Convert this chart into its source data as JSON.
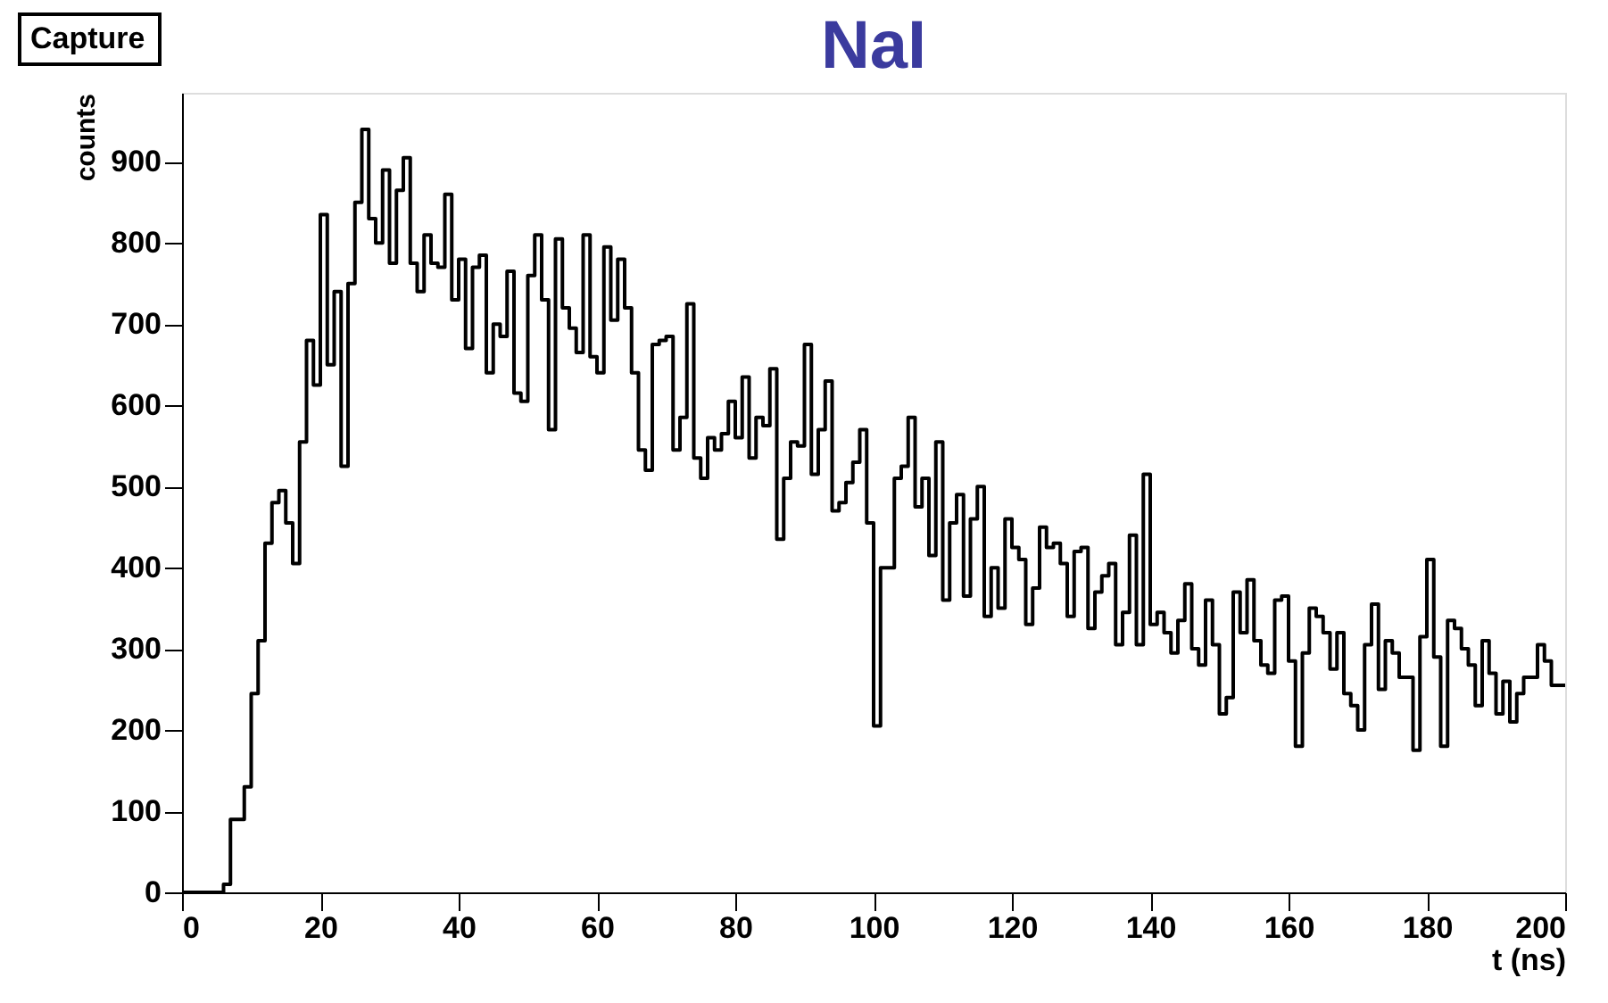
{
  "chart_data": {
    "type": "histogram",
    "title": "NaI",
    "xlabel": "t (ns)",
    "ylabel": "counts",
    "annotations": [
      "Capture"
    ],
    "bins": [
      0,
      1,
      2,
      3,
      4,
      5,
      6,
      7,
      8,
      9,
      10,
      11,
      12,
      13,
      14,
      15,
      16,
      17,
      18,
      19,
      20,
      21,
      22,
      23,
      24,
      25,
      26,
      27,
      28,
      29,
      30,
      31,
      32,
      33,
      34,
      35,
      36,
      37,
      38,
      39,
      40,
      41,
      42,
      43,
      44,
      45,
      46,
      47,
      48,
      49,
      50,
      51,
      52,
      53,
      54,
      55,
      56,
      57,
      58,
      59,
      60,
      61,
      62,
      63,
      64,
      65,
      66,
      67,
      68,
      69,
      70,
      71,
      72,
      73,
      74,
      75,
      76,
      77,
      78,
      79,
      80,
      81,
      82,
      83,
      84,
      85,
      86,
      87,
      88,
      89,
      90,
      91,
      92,
      93,
      94,
      95,
      96,
      97,
      98,
      99,
      100,
      101,
      102,
      103,
      104,
      105,
      106,
      107,
      108,
      109,
      110,
      111,
      112,
      113,
      114,
      115,
      116,
      117,
      118,
      119,
      120,
      121,
      122,
      123,
      124,
      125,
      126,
      127,
      128,
      129,
      130,
      131,
      132,
      133,
      134,
      135,
      136,
      137,
      138,
      139,
      140,
      141,
      142,
      143,
      144,
      145,
      146,
      147,
      148,
      149,
      150,
      151,
      152,
      153,
      154,
      155,
      156,
      157,
      158,
      159,
      160,
      161,
      162,
      163,
      164,
      165,
      166,
      167,
      168,
      169,
      170,
      171,
      172,
      173,
      174,
      175,
      176,
      177,
      178,
      179,
      180,
      181,
      182,
      183,
      184,
      185,
      186,
      187,
      188,
      189,
      190,
      191,
      192,
      193,
      194,
      195,
      196,
      197,
      198,
      199,
      200
    ],
    "values": [
      0,
      0,
      0,
      0,
      0,
      0,
      10,
      90,
      90,
      130,
      245,
      310,
      430,
      480,
      495,
      455,
      405,
      555,
      680,
      625,
      835,
      650,
      740,
      525,
      750,
      850,
      940,
      830,
      800,
      890,
      775,
      865,
      905,
      775,
      740,
      810,
      775,
      770,
      860,
      730,
      780,
      670,
      770,
      785,
      640,
      700,
      685,
      765,
      615,
      605,
      760,
      810,
      730,
      570,
      805,
      720,
      695,
      665,
      810,
      660,
      640,
      795,
      705,
      780,
      720,
      640,
      545,
      520,
      675,
      680,
      685,
      545,
      585,
      725,
      535,
      510,
      560,
      545,
      565,
      605,
      560,
      635,
      535,
      585,
      575,
      645,
      435,
      510,
      555,
      550,
      675,
      515,
      570,
      630,
      470,
      480,
      505,
      530,
      570,
      455,
      205,
      400,
      400,
      510,
      525,
      585,
      475,
      510,
      415,
      555,
      360,
      455,
      490,
      365,
      460,
      500,
      340,
      400,
      350,
      460,
      425,
      410,
      330,
      375,
      450,
      425,
      430,
      405,
      340,
      420,
      425,
      325,
      370,
      390,
      405,
      305,
      345,
      440,
      305,
      515,
      330,
      345,
      320,
      295,
      335,
      380,
      300,
      280,
      360,
      305,
      220,
      240,
      370,
      320,
      385,
      310,
      280,
      270,
      360,
      365,
      285,
      180,
      295,
      350,
      340,
      320,
      275,
      320,
      245,
      230,
      200,
      305,
      355,
      250,
      310,
      295,
      265,
      265,
      175,
      315,
      410,
      290,
      180,
      335,
      325,
      300,
      280,
      230,
      310,
      270,
      220,
      260,
      210,
      245,
      265,
      265,
      305,
      285,
      255,
      255
    ],
    "color": "#000000",
    "xlim": [
      0,
      200
    ],
    "ylim": [
      0,
      985
    ],
    "xticks": [
      0,
      20,
      40,
      60,
      80,
      100,
      120,
      140,
      160,
      180,
      200
    ],
    "yticks": [
      0,
      100,
      200,
      300,
      400,
      500,
      600,
      700,
      800,
      900
    ],
    "grid": false
  }
}
